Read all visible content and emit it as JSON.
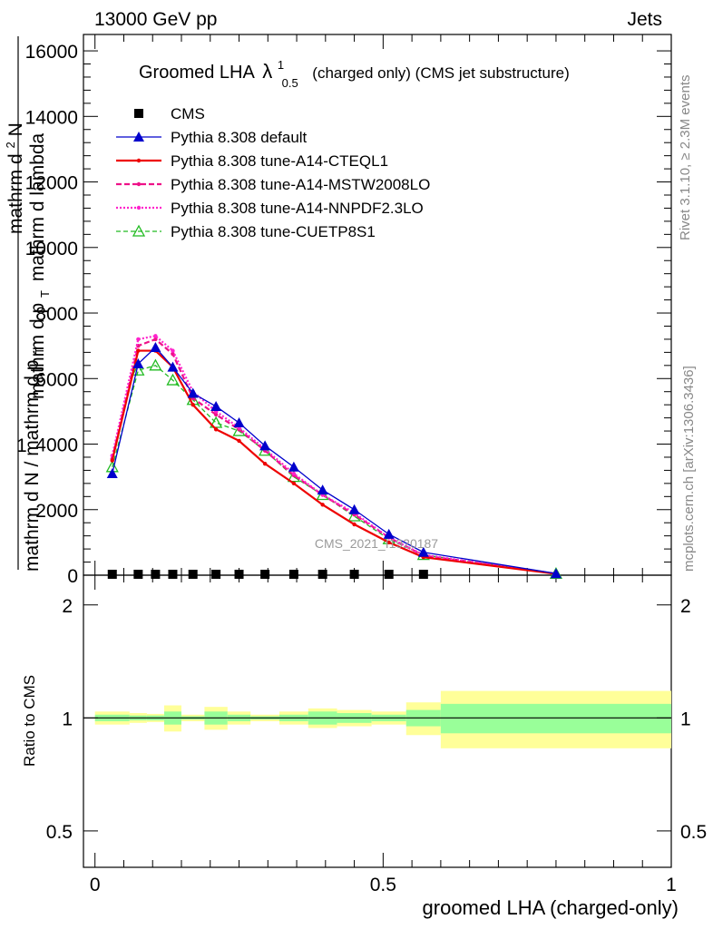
{
  "header": {
    "left": "13000 GeV pp",
    "right": "Jets"
  },
  "title": {
    "main": "Groomed LHA",
    "lambda": "λ",
    "sup": "1",
    "sub": "0.5",
    "rest": "(charged only) (CMS jet substructure)"
  },
  "side_labels": {
    "rivet": "Rivet 3.1.10, ≥ 2.3M events",
    "mcplots": "mcplots.cern.ch [arXiv:1306.3436]"
  },
  "watermark": "CMS_2021_I1920187",
  "ylabel_main": {
    "one": "1",
    "denominator": "mathrm d N / mathrm d p",
    "denominator_sub": "T",
    "numerator_line1": "mathrm d",
    "numerator_sup": "2",
    "numerator_N": "N",
    "numerator_line2": "mathrm d p",
    "numerator_sub": "T",
    "numerator_line3": "mathrm d lambda"
  },
  "ylabel_ratio": "Ratio to CMS",
  "xlabel": "groomed LHA (charged-only)",
  "colors": {
    "cms": "#000000",
    "default": "#0000cc",
    "cteql1": "#ee0000",
    "mstw": "#ee1188",
    "nnpdf": "#ff22cc",
    "cuetp8s1": "#22bb22",
    "band_inner": "#99ff99",
    "band_outer": "#ffff99"
  },
  "chart_data": [
    {
      "type": "line",
      "panel": "main",
      "ylim": [
        0,
        16500
      ],
      "xlim": [
        -0.02,
        1.0
      ],
      "yticks": [
        0,
        2000,
        4000,
        6000,
        8000,
        10000,
        12000,
        14000,
        16000
      ],
      "yticklabels": [
        "0",
        "2000",
        "4000",
        "6000",
        "8000",
        "10000",
        "12000",
        "14000",
        "16000"
      ],
      "legend_placement": "top-left",
      "cms": {
        "name": "CMS",
        "x": [
          0.03,
          0.075,
          0.105,
          0.135,
          0.17,
          0.21,
          0.25,
          0.295,
          0.345,
          0.395,
          0.45,
          0.51,
          0.57
        ],
        "y": [
          0,
          0,
          0,
          0,
          0,
          0,
          0,
          0,
          0,
          0,
          0,
          0,
          0
        ]
      },
      "series": [
        {
          "key": "default",
          "name": "Pythia 8.308 default",
          "x": [
            0.03,
            0.075,
            0.105,
            0.135,
            0.17,
            0.21,
            0.25,
            0.295,
            0.345,
            0.395,
            0.45,
            0.51,
            0.57,
            0.8
          ],
          "y": [
            3100,
            6450,
            6950,
            6350,
            5550,
            5150,
            4650,
            3950,
            3300,
            2600,
            2000,
            1250,
            700,
            50
          ]
        },
        {
          "key": "cteql1",
          "name": "Pythia 8.308 tune-A14-CTEQL1",
          "x": [
            0.03,
            0.075,
            0.105,
            0.135,
            0.17,
            0.21,
            0.25,
            0.295,
            0.345,
            0.395,
            0.45,
            0.51,
            0.57,
            0.8
          ],
          "y": [
            3500,
            6850,
            6850,
            6350,
            5200,
            4450,
            4100,
            3400,
            2800,
            2150,
            1550,
            1000,
            550,
            40
          ]
        },
        {
          "key": "mstw",
          "name": "Pythia 8.308 tune-A14-MSTW2008LO",
          "x": [
            0.03,
            0.075,
            0.105,
            0.135,
            0.17,
            0.21,
            0.25,
            0.295,
            0.345,
            0.395,
            0.45,
            0.51,
            0.57,
            0.8
          ],
          "y": [
            3550,
            7000,
            7200,
            6750,
            5400,
            4900,
            4450,
            3800,
            3050,
            2450,
            1850,
            1150,
            600,
            45
          ]
        },
        {
          "key": "nnpdf",
          "name": "Pythia 8.308 tune-A14-NNPDF2.3LO",
          "x": [
            0.03,
            0.075,
            0.105,
            0.135,
            0.17,
            0.21,
            0.25,
            0.295,
            0.345,
            0.395,
            0.45,
            0.51,
            0.57,
            0.8
          ],
          "y": [
            3650,
            7200,
            7300,
            6850,
            5600,
            5000,
            4500,
            3850,
            3100,
            2450,
            1900,
            1150,
            620,
            45
          ]
        },
        {
          "key": "cuetp8s1",
          "name": "Pythia 8.308 tune-CUETP8S1",
          "x": [
            0.03,
            0.075,
            0.105,
            0.135,
            0.17,
            0.21,
            0.25,
            0.295,
            0.345,
            0.395,
            0.45,
            0.51,
            0.57,
            0.8
          ],
          "y": [
            3300,
            6250,
            6400,
            5950,
            5350,
            4650,
            4400,
            3800,
            3000,
            2450,
            1800,
            1100,
            620,
            45
          ]
        }
      ]
    },
    {
      "type": "area",
      "panel": "ratio",
      "ylim": [
        0.4,
        2.4
      ],
      "yscale": "log",
      "yticks": [
        0.5,
        1,
        2
      ],
      "yticklabels": [
        "0.5",
        "1",
        "2"
      ],
      "xticks": [
        0,
        0.5,
        1
      ],
      "xticklabels": [
        "0",
        "0.5",
        "1"
      ],
      "reference_line": 1,
      "bins": [
        {
          "lo": 0.0,
          "hi": 0.06,
          "inner": [
            0.98,
            1.02
          ],
          "outer": [
            0.96,
            1.04
          ]
        },
        {
          "lo": 0.06,
          "hi": 0.09,
          "inner": [
            0.985,
            1.015
          ],
          "outer": [
            0.97,
            1.03
          ]
        },
        {
          "lo": 0.09,
          "hi": 0.12,
          "inner": [
            0.985,
            1.015
          ],
          "outer": [
            0.975,
            1.025
          ]
        },
        {
          "lo": 0.12,
          "hi": 0.15,
          "inner": [
            0.96,
            1.04
          ],
          "outer": [
            0.92,
            1.08
          ]
        },
        {
          "lo": 0.15,
          "hi": 0.19,
          "inner": [
            0.99,
            1.01
          ],
          "outer": [
            0.98,
            1.02
          ]
        },
        {
          "lo": 0.19,
          "hi": 0.23,
          "inner": [
            0.96,
            1.04
          ],
          "outer": [
            0.93,
            1.07
          ]
        },
        {
          "lo": 0.23,
          "hi": 0.27,
          "inner": [
            0.98,
            1.02
          ],
          "outer": [
            0.96,
            1.04
          ]
        },
        {
          "lo": 0.27,
          "hi": 0.32,
          "inner": [
            0.99,
            1.01
          ],
          "outer": [
            0.98,
            1.02
          ]
        },
        {
          "lo": 0.32,
          "hi": 0.37,
          "inner": [
            0.98,
            1.02
          ],
          "outer": [
            0.96,
            1.04
          ]
        },
        {
          "lo": 0.37,
          "hi": 0.42,
          "inner": [
            0.96,
            1.04
          ],
          "outer": [
            0.94,
            1.06
          ]
        },
        {
          "lo": 0.42,
          "hi": 0.48,
          "inner": [
            0.97,
            1.03
          ],
          "outer": [
            0.95,
            1.05
          ]
        },
        {
          "lo": 0.48,
          "hi": 0.54,
          "inner": [
            0.98,
            1.02
          ],
          "outer": [
            0.96,
            1.04
          ]
        },
        {
          "lo": 0.54,
          "hi": 0.6,
          "inner": [
            0.95,
            1.05
          ],
          "outer": [
            0.9,
            1.1
          ]
        },
        {
          "lo": 0.6,
          "hi": 1.0,
          "inner": [
            0.91,
            1.09
          ],
          "outer": [
            0.83,
            1.18
          ]
        }
      ]
    }
  ]
}
